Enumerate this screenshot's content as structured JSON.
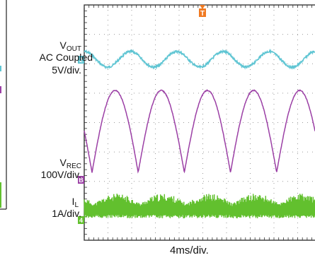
{
  "chart_data": {
    "type": "line",
    "time_scale": "4ms/div.",
    "trigger_marker": "T",
    "channels": [
      {
        "id": "2",
        "name_base": "V",
        "name_sub": "OUT",
        "coupling": "AC Coupled",
        "scale": "5V/div.",
        "color": "#5fc5d3",
        "waveform": "sine ripple, ~120 Hz, about 0.4 div peak-to-peak",
        "cycles_shown": 5
      },
      {
        "id": "B",
        "name_base": "V",
        "name_sub": "REC",
        "scale": "100V/div.",
        "color": "#9b3fa5",
        "waveform": "full-wave rectified sine, ~120 Hz, peaks about 3.9 div above baseline",
        "cycles_shown": 5
      },
      {
        "id": "4",
        "name_base": "I",
        "name_sub": "L",
        "scale": "1A/div.",
        "color": "#62c02e",
        "waveform": "noisy switching current with ~120 Hz envelope, about 0.9 div band",
        "cycles_shown": 5
      }
    ],
    "grid": {
      "h_divisions": 10,
      "v_divisions": 8
    }
  }
}
